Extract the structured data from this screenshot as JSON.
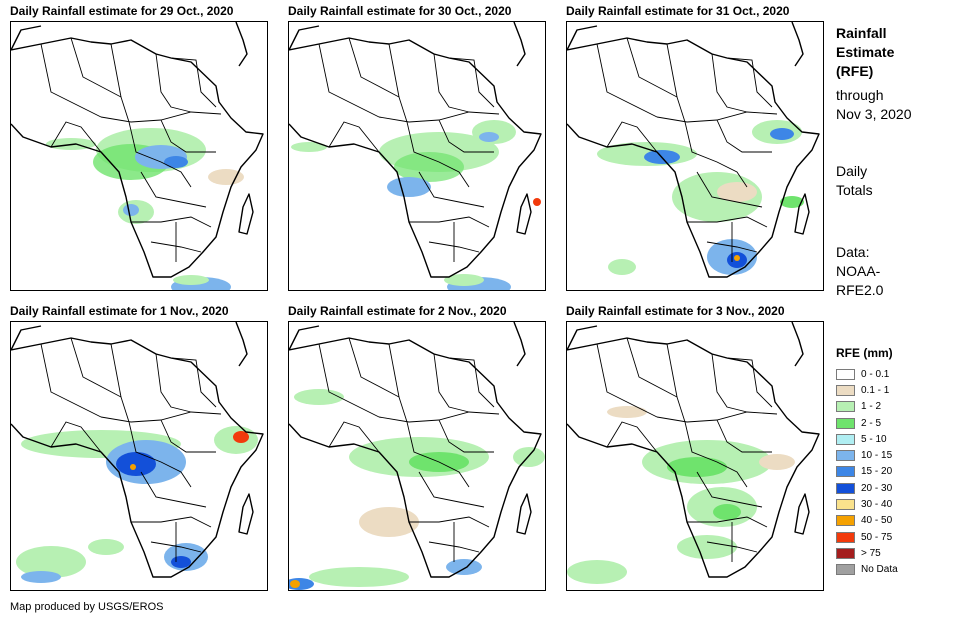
{
  "panels": [
    {
      "title": "Daily Rainfall estimate for 29 Oct., 2020"
    },
    {
      "title": "Daily Rainfall estimate for 30 Oct., 2020"
    },
    {
      "title": "Daily Rainfall estimate for 31 Oct., 2020"
    },
    {
      "title": "Daily Rainfall estimate for 1 Nov., 2020"
    },
    {
      "title": "Daily Rainfall estimate for 2 Nov., 2020"
    },
    {
      "title": "Daily Rainfall estimate for 3 Nov., 2020"
    }
  ],
  "side": {
    "title_lines": [
      "Rainfall",
      "Estimate",
      "(RFE)"
    ],
    "through_lines": [
      "through",
      "Nov 3, 2020"
    ],
    "daily_lines": [
      "Daily",
      "Totals"
    ],
    "data_lines": [
      "Data:",
      "NOAA-",
      "RFE2.0"
    ]
  },
  "legend": {
    "title": "RFE (mm)",
    "items": [
      {
        "label": "0 - 0.1",
        "color": "#ffffff"
      },
      {
        "label": "0.1 - 1",
        "color": "#ecdcc3"
      },
      {
        "label": "1 - 2",
        "color": "#b7f0b3"
      },
      {
        "label": "2 - 5",
        "color": "#6fe36d"
      },
      {
        "label": "5 - 10",
        "color": "#b0eef2"
      },
      {
        "label": "10 - 15",
        "color": "#7cb4ec"
      },
      {
        "label": "15 - 20",
        "color": "#3d86e6"
      },
      {
        "label": "20 - 30",
        "color": "#1350d9"
      },
      {
        "label": "30 - 40",
        "color": "#fae28c"
      },
      {
        "label": "40 - 50",
        "color": "#f5a100"
      },
      {
        "label": "50 - 75",
        "color": "#f23a0c"
      },
      {
        "label": "> 75",
        "color": "#a41d1d"
      },
      {
        "label": "No Data",
        "color": "#a0a0a0"
      }
    ]
  },
  "credit": "Map produced by USGS/EROS"
}
